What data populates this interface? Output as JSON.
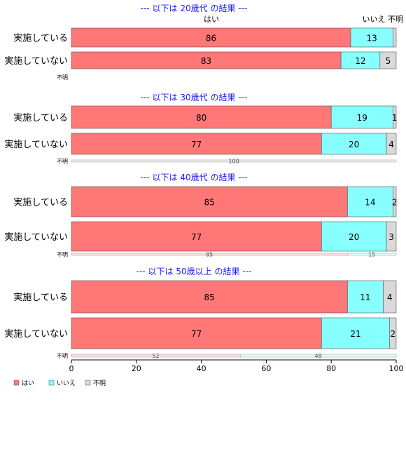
{
  "chart_data": {
    "type": "bar",
    "orientation": "horizontal",
    "stacked": true,
    "xlim": [
      0,
      100
    ],
    "x_ticks": [
      "0",
      "20",
      "40",
      "60",
      "80",
      "100"
    ],
    "legend": {
      "placement": "bottom-left",
      "items": [
        {
          "name": "はい",
          "color": "#ff7777"
        },
        {
          "name": "いいえ",
          "color": "#88ffff"
        },
        {
          "name": "不明",
          "color": "#d9d9d9"
        }
      ]
    },
    "column_headers": {
      "yes": "はい",
      "no": "いいえ",
      "unknown": "不明"
    },
    "panels": [
      {
        "title": "--- 以下は 20歳代 の結果 ---",
        "rows": [
          {
            "label": "実施している",
            "values": [
              86,
              13,
              1
            ],
            "labels": [
              "86",
              "13",
              ""
            ]
          },
          {
            "label": "実施していない",
            "values": [
              83,
              12,
              5
            ],
            "labels": [
              "83",
              "12",
              "5"
            ]
          },
          {
            "label": "不明",
            "values": [
              0,
              0,
              0
            ],
            "labels": [
              "",
              "",
              ""
            ],
            "thin": true
          }
        ]
      },
      {
        "title": "--- 以下は 30歳代 の結果 ---",
        "rows": [
          {
            "label": "実施している",
            "values": [
              80,
              19,
              1
            ],
            "labels": [
              "80",
              "19",
              "1"
            ]
          },
          {
            "label": "実施していない",
            "values": [
              77,
              20,
              4
            ],
            "labels": [
              "77",
              "20",
              "4"
            ]
          },
          {
            "label": "不明",
            "values": [
              0,
              0,
              100
            ],
            "labels": [
              "",
              "",
              "100"
            ],
            "thin": true
          }
        ]
      },
      {
        "title": "--- 以下は 40歳代 の結果 ---",
        "rows": [
          {
            "label": "実施している",
            "values": [
              85,
              14,
              2
            ],
            "labels": [
              "85",
              "14",
              "2"
            ]
          },
          {
            "label": "実施していない",
            "values": [
              77,
              20,
              3
            ],
            "labels": [
              "77",
              "20",
              "3"
            ]
          },
          {
            "label": "不明",
            "values": [
              85,
              15,
              0
            ],
            "labels": [
              "85",
              "15",
              ""
            ],
            "thin": true
          }
        ]
      },
      {
        "title": "--- 以下は 50歳以上 の結果 ---",
        "rows": [
          {
            "label": "実施している",
            "values": [
              85,
              11,
              4
            ],
            "labels": [
              "85",
              "11",
              "4"
            ]
          },
          {
            "label": "実施していない",
            "values": [
              77,
              21,
              2
            ],
            "labels": [
              "77",
              "21",
              "2"
            ]
          },
          {
            "label": "不明",
            "values": [
              52,
              48,
              0
            ],
            "labels": [
              "52",
              "48",
              ""
            ],
            "thin": true
          }
        ]
      }
    ]
  }
}
